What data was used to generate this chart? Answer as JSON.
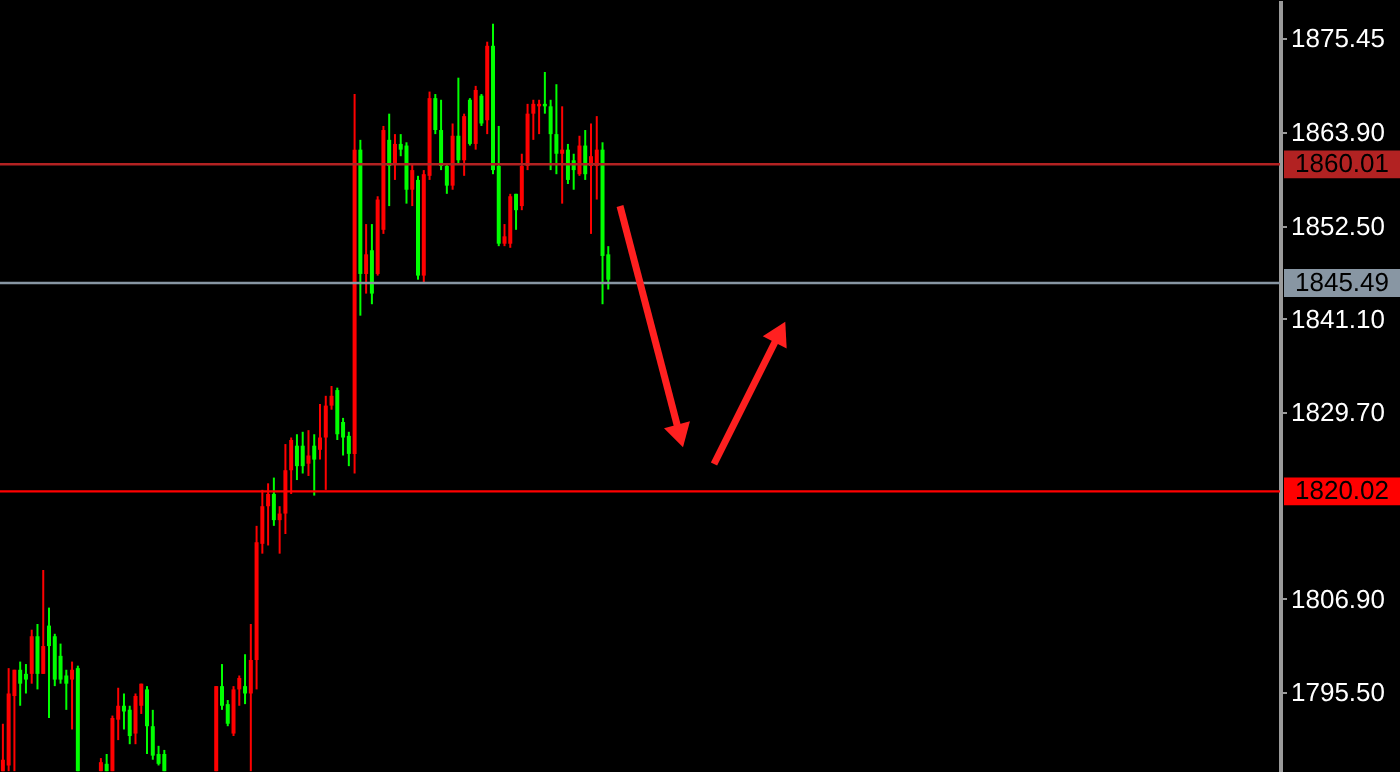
{
  "chart_data": {
    "type": "candlestick",
    "categories": [
      null,
      null,
      null,
      null,
      null,
      null,
      null,
      null,
      null,
      null,
      null,
      null,
      null,
      null,
      null,
      null,
      null,
      null,
      null,
      null,
      null,
      null,
      null,
      null,
      null,
      null,
      null,
      null,
      null,
      null,
      null,
      null,
      null,
      null,
      null,
      null,
      null,
      null,
      null,
      null,
      null,
      null,
      null,
      null,
      null,
      null,
      null,
      null,
      null,
      null,
      null,
      null,
      null,
      null,
      null,
      null,
      null,
      null,
      null,
      null,
      null,
      null,
      null,
      null,
      null,
      null,
      null,
      null,
      null,
      null,
      null,
      null,
      null,
      null,
      null,
      null,
      null,
      null,
      null,
      null,
      null,
      null,
      null,
      null,
      null,
      null,
      null,
      null,
      null,
      null,
      null,
      null,
      null,
      null,
      null,
      null,
      null,
      null,
      null,
      null,
      null,
      null,
      null,
      null,
      null,
      null,
      null,
      null,
      null,
      null,
      null,
      null,
      null,
      null,
      null,
      null,
      null,
      null,
      null,
      null,
      null,
      null,
      null,
      null,
      null,
      null,
      null,
      null,
      null,
      null,
      null,
      null,
      null,
      null,
      null,
      null,
      null,
      null,
      null,
      null,
      null,
      null,
      null,
      null,
      null,
      null,
      null,
      null,
      null,
      null,
      null,
      null,
      null,
      null,
      null,
      null,
      null,
      null,
      null,
      null,
      null,
      null,
      null,
      null,
      null,
      null,
      null,
      null,
      null,
      null,
      null,
      null,
      null,
      null,
      null,
      null,
      null,
      null,
      null,
      null,
      null,
      null,
      null,
      null,
      null,
      null,
      null,
      null,
      null,
      null,
      null,
      null,
      null,
      null,
      null,
      null,
      null,
      null,
      null,
      null,
      null,
      null,
      null,
      null,
      null,
      null,
      null,
      null,
      null,
      null,
      null,
      null,
      null,
      null,
      null,
      null,
      null,
      null,
      null,
      null,
      null,
      null
    ],
    "ohlc": [
      [
        1785.8,
        1791.6,
        1785.8,
        1787.2
      ],
      [
        1786.5,
        1798.4,
        1785.8,
        1795.3
      ],
      [
        1795.0,
        1798.2,
        1785.8,
        1798.2
      ],
      [
        1798.2,
        1799.2,
        1793.8,
        1796.5
      ],
      [
        1797.7,
        1798.9,
        1795.3,
        1797.0
      ],
      [
        1797.7,
        1803.1,
        1796.5,
        1802.3
      ],
      [
        1802.3,
        1803.8,
        1795.8,
        1797.7
      ],
      [
        1797.7,
        1810.4,
        1797.7,
        1801.1
      ],
      [
        1803.6,
        1805.8,
        1792.3,
        1801.1
      ],
      [
        1802.3,
        1802.6,
        1796.2,
        1797.0
      ],
      [
        1799.9,
        1801.4,
        1796.5,
        1797.0
      ],
      [
        1797.5,
        1798.2,
        1793.3,
        1796.5
      ],
      [
        1797.0,
        1799.2,
        1790.9,
        1798.2
      ],
      [
        1798.4,
        1798.7,
        1785.8,
        1785.8
      ],
      null,
      null,
      null,
      [
        1785.8,
        1787.4,
        1785.8,
        1786.9
      ],
      [
        1786.7,
        1787.9,
        1785.8,
        1785.8
      ],
      [
        1785.8,
        1792.6,
        1785.8,
        1792.3
      ],
      [
        1792.1,
        1796.0,
        1789.6,
        1793.8
      ],
      [
        1793.8,
        1795.3,
        1790.9,
        1793.1
      ],
      [
        1793.3,
        1793.8,
        1789.1,
        1790.1
      ],
      [
        1790.4,
        1795.3,
        1789.1,
        1795.0
      ],
      [
        1793.8,
        1796.5,
        1792.8,
        1796.5
      ],
      [
        1795.8,
        1796.2,
        1787.9,
        1791.3
      ],
      [
        1791.3,
        1793.3,
        1787.2,
        1787.7
      ],
      [
        1787.9,
        1788.9,
        1786.5,
        1786.7
      ],
      [
        1787.9,
        1788.4,
        1785.8,
        1785.8
      ],
      null,
      null,
      null,
      null,
      null,
      null,
      null,
      null,
      [
        1785.8,
        1796.2,
        1785.8,
        1796.2
      ],
      [
        1796.2,
        1798.9,
        1793.3,
        1793.8
      ],
      [
        1794.0,
        1794.5,
        1791.3,
        1791.6
      ],
      [
        1790.4,
        1796.2,
        1790.1,
        1795.8
      ],
      [
        1795.8,
        1797.5,
        1793.8,
        1797.2
      ],
      [
        1796.2,
        1800.1,
        1794.0,
        1795.3
      ],
      [
        1795.3,
        1803.8,
        1785.8,
        1799.4
      ],
      [
        1799.4,
        1815.8,
        1795.8,
        1813.8
      ],
      [
        1813.6,
        1820.2,
        1812.4,
        1818.2
      ],
      [
        1818.2,
        1821.0,
        1813.4,
        1819.7
      ],
      [
        1819.7,
        1821.7,
        1815.8,
        1816.5
      ],
      [
        1816.5,
        1818.2,
        1812.4,
        1817.3
      ],
      [
        1817.3,
        1825.8,
        1814.8,
        1822.6
      ],
      [
        1822.6,
        1826.6,
        1819.7,
        1826.3
      ],
      [
        1825.6,
        1827.0,
        1821.4,
        1823.1
      ],
      [
        1825.6,
        1827.3,
        1822.2,
        1823.1
      ],
      [
        1823.4,
        1827.5,
        1821.9,
        1824.4
      ],
      [
        1825.6,
        1827.0,
        1819.5,
        1823.9
      ],
      [
        1825.1,
        1830.7,
        1823.9,
        1826.6
      ],
      [
        1826.6,
        1831.7,
        1820.2,
        1830.5
      ],
      [
        1830.5,
        1832.9,
        1830.0,
        1831.7
      ],
      [
        1832.4,
        1832.7,
        1826.3,
        1827.0
      ],
      [
        1828.5,
        1829.0,
        1824.4,
        1826.6
      ],
      [
        1826.8,
        1827.3,
        1823.1,
        1824.6
      ],
      [
        1824.6,
        1868.6,
        1822.2,
        1861.8
      ],
      [
        1861.8,
        1863.0,
        1841.5,
        1846.6
      ],
      [
        1846.6,
        1852.7,
        1844.2,
        1849.0
      ],
      [
        1849.5,
        1852.7,
        1842.9,
        1844.2
      ],
      [
        1846.6,
        1856.1,
        1846.4,
        1855.7
      ],
      [
        1852.0,
        1864.7,
        1851.5,
        1864.2
      ],
      [
        1863.0,
        1866.2,
        1854.9,
        1859.8
      ],
      [
        1860.0,
        1863.7,
        1858.1,
        1862.5
      ],
      [
        1862.5,
        1863.7,
        1861.0,
        1861.8
      ],
      [
        1862.3,
        1862.7,
        1855.2,
        1856.9
      ],
      [
        1856.9,
        1860.0,
        1854.9,
        1859.3
      ],
      [
        1858.1,
        1858.6,
        1845.9,
        1846.4
      ],
      [
        1846.4,
        1859.3,
        1845.4,
        1858.8
      ],
      [
        1858.6,
        1868.9,
        1858.1,
        1868.1
      ],
      [
        1868.1,
        1868.6,
        1863.7,
        1864.2
      ],
      [
        1864.2,
        1867.9,
        1859.3,
        1859.8
      ],
      [
        1859.8,
        1860.0,
        1856.4,
        1857.4
      ],
      [
        1857.4,
        1865.0,
        1856.9,
        1863.5
      ],
      [
        1863.5,
        1870.6,
        1860.0,
        1860.5
      ],
      [
        1860.5,
        1866.2,
        1858.6,
        1865.9
      ],
      [
        1867.9,
        1868.1,
        1862.3,
        1862.5
      ],
      [
        1862.5,
        1869.6,
        1861.8,
        1869.1
      ],
      [
        1868.4,
        1868.6,
        1864.7,
        1865.0
      ],
      [
        1865.4,
        1875.0,
        1863.7,
        1874.5
      ],
      [
        1874.5,
        1877.2,
        1858.8,
        1859.3
      ],
      [
        1859.8,
        1864.7,
        1850.0,
        1850.3
      ],
      [
        1850.3,
        1852.7,
        1850.0,
        1851.2
      ],
      [
        1850.3,
        1856.4,
        1849.8,
        1856.1
      ],
      [
        1856.4,
        1856.4,
        1852.0,
        1854.4
      ],
      [
        1854.9,
        1861.3,
        1854.4,
        1859.8
      ],
      [
        1859.8,
        1867.4,
        1859.3,
        1866.2
      ],
      [
        1866.2,
        1867.9,
        1863.0,
        1867.4
      ],
      [
        1867.1,
        1867.9,
        1863.7,
        1867.4
      ],
      [
        1867.4,
        1871.3,
        1866.2,
        1867.1
      ],
      [
        1867.1,
        1867.9,
        1859.3,
        1863.7
      ],
      [
        1863.7,
        1869.8,
        1858.8,
        1861.3
      ],
      [
        1861.3,
        1867.1,
        1855.2,
        1861.8
      ],
      [
        1861.8,
        1862.5,
        1857.6,
        1858.1
      ],
      [
        1860.5,
        1861.3,
        1856.9,
        1859.3
      ],
      [
        1858.8,
        1863.5,
        1858.6,
        1862.3
      ],
      [
        1862.3,
        1864.2,
        1858.1,
        1858.8
      ],
      [
        1859.8,
        1865.0,
        1851.5,
        1861.0
      ],
      [
        1859.8,
        1865.9,
        1855.7,
        1861.8
      ],
      [
        1861.8,
        1862.7,
        1842.9,
        1848.8
      ],
      [
        1849.0,
        1850.0,
        1844.7,
        1845.9
      ],
      null,
      null,
      null,
      null,
      null,
      null,
      null,
      null,
      null,
      null,
      null,
      null,
      null,
      null,
      null,
      null,
      null,
      null,
      null,
      null,
      null,
      null,
      null,
      null,
      null,
      null,
      null,
      null,
      null,
      null,
      null,
      null,
      null,
      null,
      null,
      null,
      null,
      null,
      null,
      null,
      null,
      null,
      null,
      null,
      null,
      null,
      null,
      null,
      null,
      null,
      null,
      null,
      null,
      null,
      null,
      null,
      null,
      null,
      null,
      null,
      null,
      null,
      null,
      null,
      null,
      null,
      null,
      null,
      null,
      null,
      null,
      null,
      null,
      null,
      null,
      null,
      null,
      null,
      null,
      null,
      null,
      null,
      null,
      null,
      null,
      null,
      null,
      null,
      null,
      null,
      null,
      null,
      null,
      null,
      null,
      null,
      null,
      null,
      null,
      null,
      null,
      null,
      null,
      null,
      null,
      null,
      null,
      null,
      null,
      null,
      null,
      null,
      null,
      null,
      null,
      null
    ],
    "colors": [
      "#ff0000",
      "#ff0000",
      "#ff0000",
      "#00ff00",
      "#00ff00",
      "#ff0000",
      "#00ff00",
      "#ff0000",
      "#00ff00",
      "#00ff00",
      "#00ff00",
      "#00ff00",
      "#ff0000",
      "#00ff00",
      null,
      null,
      null,
      "#ff0000",
      "#00ff00",
      "#ff0000",
      "#ff0000",
      "#00ff00",
      "#00ff00",
      "#ff0000",
      "#ff0000",
      "#00ff00",
      "#00ff00",
      "#00ff00",
      "#00ff00",
      null,
      null,
      null,
      null,
      null,
      null,
      null,
      null,
      "#ff0000",
      "#00ff00",
      "#00ff00",
      "#ff0000",
      "#ff0000",
      "#00ff00",
      "#ff0000",
      "#ff0000",
      "#ff0000",
      "#ff0000",
      "#00ff00",
      "#ff0000",
      "#ff0000",
      "#ff0000",
      "#00ff00",
      "#00ff00",
      "#ff0000",
      "#00ff00",
      "#ff0000",
      "#ff0000",
      "#ff0000",
      "#00ff00",
      "#00ff00",
      "#00ff00",
      "#ff0000",
      "#00ff00",
      "#ff0000",
      "#00ff00",
      "#ff0000",
      "#ff0000",
      "#00ff00",
      "#ff0000",
      "#00ff00",
      "#00ff00",
      "#ff0000",
      "#00ff00",
      "#ff0000",
      "#ff0000",
      "#00ff00",
      "#00ff00",
      "#00ff00",
      "#ff0000",
      "#00ff00",
      "#ff0000",
      "#00ff00",
      "#ff0000",
      "#00ff00",
      "#ff0000",
      "#00ff00",
      "#00ff00",
      "#ff0000",
      "#ff0000",
      "#00ff00",
      "#ff0000",
      "#ff0000",
      "#ff0000",
      "#ff0000",
      "#00ff00",
      "#00ff00",
      "#00ff00",
      "#ff0000",
      "#00ff00",
      "#00ff00",
      "#ff0000",
      "#00ff00",
      "#ff0000",
      "#ff0000",
      "#00ff00",
      "#00ff00",
      null,
      null,
      null,
      null,
      null,
      null,
      null,
      null,
      null,
      null,
      null,
      null,
      null,
      null,
      null,
      null,
      null,
      null,
      null,
      null,
      null,
      null,
      null,
      null,
      null,
      null,
      null,
      null,
      null,
      null,
      null,
      null,
      null,
      null,
      null,
      null,
      null,
      null,
      null,
      null,
      null,
      null,
      null,
      null,
      null,
      null,
      null,
      null,
      null,
      null,
      null,
      null,
      null,
      null,
      null,
      null,
      null,
      null,
      null,
      null,
      null,
      null,
      null,
      null,
      null,
      null,
      null,
      null,
      null,
      null,
      null,
      null,
      null,
      null,
      null,
      null,
      null,
      null,
      null,
      null,
      null,
      null,
      null,
      null,
      null,
      null,
      null,
      null,
      null,
      null,
      null,
      null,
      null,
      null,
      null,
      null,
      null,
      null,
      null,
      null,
      null,
      null,
      null,
      null,
      null,
      null,
      null,
      null,
      null,
      null,
      null,
      null,
      null,
      null,
      null,
      null
    ],
    "ylim": [
      1785.7,
      1880.1
    ],
    "yticks": [
      1875.45,
      {
        "value": 1863.9,
        "label": "1863.90"
      },
      {
        "value": 1852.5,
        "label": "1852.50"
      },
      {
        "value": 1841.1,
        "label": "1841.10"
      },
      {
        "value": 1829.7,
        "label": "1829.70"
      },
      {
        "value": 1806.9,
        "label": "1806.90"
      },
      {
        "value": 1795.5,
        "label": "1795.50"
      }
    ],
    "tick_labels": "y",
    "ref_lines": [
      {
        "axis": "y",
        "value": 1860.01,
        "label": "1860.01",
        "color": "#b22222"
      },
      {
        "axis": "y",
        "value": 1845.49,
        "label": "1845.49",
        "color": "#8896a3"
      },
      {
        "axis": "y",
        "value": 1820.02,
        "label": "1820.02",
        "color": "#ff0000"
      }
    ]
  }
}
